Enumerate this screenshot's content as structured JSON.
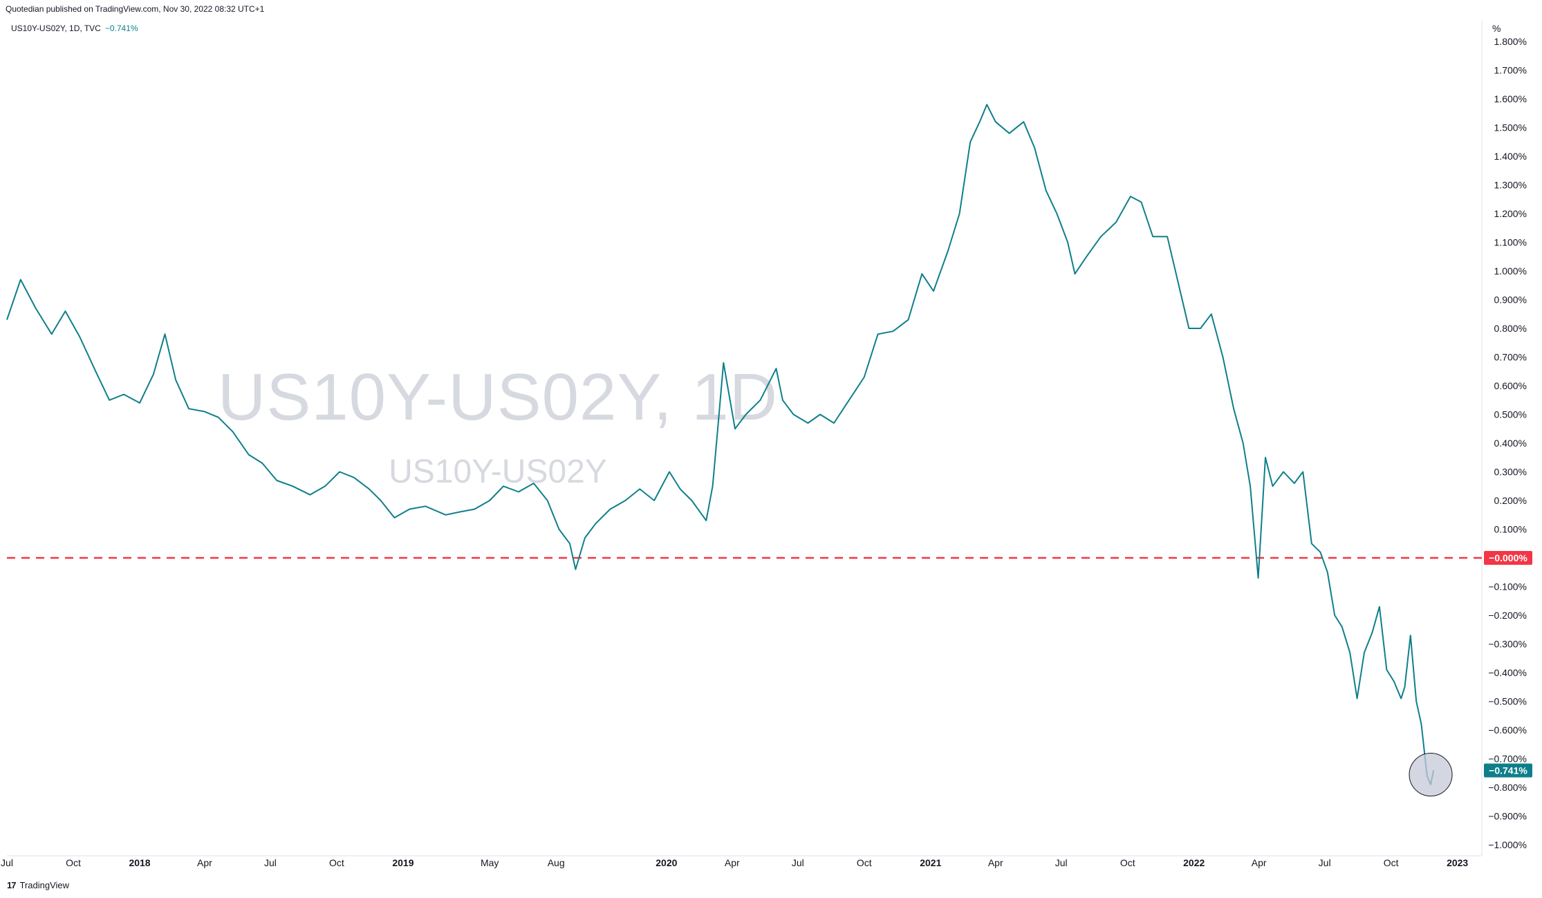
{
  "header": {
    "published": "Quotedian published on TradingView.com, Nov 30, 2022 08:32 UTC+1"
  },
  "legend": {
    "symbol": "US10Y-US02Y, 1D, TVC",
    "value": "−0.741%"
  },
  "watermark": {
    "big": "US10Y-US02Y, 1D",
    "small": "US10Y-US02Y"
  },
  "footer": {
    "brand": "TradingView"
  },
  "colors": {
    "line": "#0e7f8a",
    "zero_line": "#f23645",
    "last_label_bg": "#0e7f8a",
    "circle_fill": "#c5c8d8"
  },
  "chart_data": {
    "type": "line",
    "unit_label": "%",
    "ylim": [
      -1.0,
      1.8
    ],
    "y_ticks": [
      1.8,
      1.7,
      1.6,
      1.5,
      1.4,
      1.3,
      1.2,
      1.1,
      1.0,
      0.9,
      0.8,
      0.7,
      0.6,
      0.5,
      0.4,
      0.3,
      0.2,
      0.1,
      -0.1,
      -0.2,
      -0.3,
      -0.4,
      -0.5,
      -0.6,
      -0.7,
      -0.8,
      -0.9,
      -1.0
    ],
    "y_tick_labels": [
      "1.800%",
      "1.700%",
      "1.600%",
      "1.500%",
      "1.400%",
      "1.300%",
      "1.200%",
      "1.100%",
      "1.000%",
      "0.900%",
      "0.800%",
      "0.700%",
      "0.600%",
      "0.500%",
      "0.400%",
      "0.300%",
      "0.200%",
      "0.100%",
      "−0.100%",
      "−0.200%",
      "−0.300%",
      "−0.400%",
      "−0.500%",
      "−0.600%",
      "−0.700%",
      "−0.800%",
      "−0.900%",
      "−1.000%"
    ],
    "xlim": [
      "2017-07-01",
      "2023-02-01"
    ],
    "x_ticks": [
      {
        "date": "2017-07-01",
        "label": "Jul",
        "bold": false
      },
      {
        "date": "2017-10-01",
        "label": "Oct",
        "bold": false
      },
      {
        "date": "2018-01-01",
        "label": "2018",
        "bold": true
      },
      {
        "date": "2018-04-01",
        "label": "Apr",
        "bold": false
      },
      {
        "date": "2018-07-01",
        "label": "Jul",
        "bold": false
      },
      {
        "date": "2018-10-01",
        "label": "Oct",
        "bold": false
      },
      {
        "date": "2019-01-01",
        "label": "2019",
        "bold": true
      },
      {
        "date": "2019-05-01",
        "label": "May",
        "bold": false
      },
      {
        "date": "2019-08-01",
        "label": "Aug",
        "bold": false
      },
      {
        "date": "2020-01-01",
        "label": "2020",
        "bold": true
      },
      {
        "date": "2020-04-01",
        "label": "Apr",
        "bold": false
      },
      {
        "date": "2020-07-01",
        "label": "Jul",
        "bold": false
      },
      {
        "date": "2020-10-01",
        "label": "Oct",
        "bold": false
      },
      {
        "date": "2021-01-01",
        "label": "2021",
        "bold": true
      },
      {
        "date": "2021-04-01",
        "label": "Apr",
        "bold": false
      },
      {
        "date": "2021-07-01",
        "label": "Jul",
        "bold": false
      },
      {
        "date": "2021-10-01",
        "label": "Oct",
        "bold": false
      },
      {
        "date": "2022-01-01",
        "label": "2022",
        "bold": true
      },
      {
        "date": "2022-04-01",
        "label": "Apr",
        "bold": false
      },
      {
        "date": "2022-07-01",
        "label": "Jul",
        "bold": false
      },
      {
        "date": "2022-10-01",
        "label": "Oct",
        "bold": false
      },
      {
        "date": "2023-01-01",
        "label": "2023",
        "bold": true
      }
    ],
    "series": [
      {
        "x": [
          "2017-07-01",
          "2017-07-20",
          "2017-08-10",
          "2017-09-01",
          "2017-09-20",
          "2017-10-10",
          "2017-11-01",
          "2017-11-20",
          "2017-12-10",
          "2018-01-01",
          "2018-01-20",
          "2018-02-05",
          "2018-02-20",
          "2018-03-10",
          "2018-04-01",
          "2018-04-20",
          "2018-05-10",
          "2018-06-01",
          "2018-06-20",
          "2018-07-10",
          "2018-08-01",
          "2018-08-25",
          "2018-09-15",
          "2018-10-05",
          "2018-10-25",
          "2018-11-15",
          "2018-12-01",
          "2018-12-20",
          "2019-01-10",
          "2019-02-01",
          "2019-03-01",
          "2019-03-20",
          "2019-04-10",
          "2019-05-01",
          "2019-05-20",
          "2019-06-10",
          "2019-07-01",
          "2019-07-20",
          "2019-08-05",
          "2019-08-20",
          "2019-08-28",
          "2019-09-10",
          "2019-09-25",
          "2019-10-15",
          "2019-11-05",
          "2019-11-25",
          "2019-12-15",
          "2020-01-05",
          "2020-01-20",
          "2020-02-05",
          "2020-02-25",
          "2020-03-05",
          "2020-03-12",
          "2020-03-20",
          "2020-04-05",
          "2020-04-20",
          "2020-05-10",
          "2020-06-01",
          "2020-06-10",
          "2020-06-25",
          "2020-07-15",
          "2020-08-01",
          "2020-08-20",
          "2020-09-10",
          "2020-10-01",
          "2020-10-20",
          "2020-11-10",
          "2020-12-01",
          "2020-12-20",
          "2021-01-05",
          "2021-01-25",
          "2021-02-10",
          "2021-02-25",
          "2021-03-10",
          "2021-03-20",
          "2021-04-01",
          "2021-04-20",
          "2021-05-10",
          "2021-05-25",
          "2021-06-10",
          "2021-06-25",
          "2021-07-10",
          "2021-07-20",
          "2021-08-05",
          "2021-08-25",
          "2021-09-15",
          "2021-10-05",
          "2021-10-20",
          "2021-11-05",
          "2021-11-25",
          "2021-12-10",
          "2021-12-25",
          "2022-01-10",
          "2022-01-25",
          "2022-02-10",
          "2022-02-25",
          "2022-03-10",
          "2022-03-20",
          "2022-03-31",
          "2022-04-10",
          "2022-04-20",
          "2022-05-05",
          "2022-05-20",
          "2022-06-01",
          "2022-06-13",
          "2022-06-25",
          "2022-07-05",
          "2022-07-15",
          "2022-07-25",
          "2022-08-05",
          "2022-08-15",
          "2022-08-25",
          "2022-09-05",
          "2022-09-15",
          "2022-09-25",
          "2022-10-05",
          "2022-10-15",
          "2022-10-20",
          "2022-10-28",
          "2022-11-05",
          "2022-11-12",
          "2022-11-20",
          "2022-11-25",
          "2022-11-29"
        ],
        "values": [
          0.83,
          0.97,
          0.87,
          0.78,
          0.86,
          0.77,
          0.65,
          0.55,
          0.57,
          0.54,
          0.64,
          0.78,
          0.62,
          0.52,
          0.51,
          0.49,
          0.44,
          0.36,
          0.33,
          0.27,
          0.25,
          0.22,
          0.25,
          0.3,
          0.28,
          0.24,
          0.2,
          0.14,
          0.17,
          0.18,
          0.15,
          0.16,
          0.17,
          0.2,
          0.25,
          0.23,
          0.26,
          0.2,
          0.1,
          0.05,
          -0.04,
          0.07,
          0.12,
          0.17,
          0.2,
          0.24,
          0.2,
          0.3,
          0.24,
          0.2,
          0.13,
          0.25,
          0.45,
          0.68,
          0.45,
          0.5,
          0.55,
          0.66,
          0.55,
          0.5,
          0.47,
          0.5,
          0.47,
          0.55,
          0.63,
          0.78,
          0.79,
          0.83,
          0.99,
          0.93,
          1.07,
          1.2,
          1.45,
          1.52,
          1.58,
          1.52,
          1.48,
          1.52,
          1.43,
          1.28,
          1.2,
          1.1,
          0.99,
          1.05,
          1.12,
          1.17,
          1.26,
          1.24,
          1.12,
          1.12,
          0.96,
          0.8,
          0.8,
          0.85,
          0.7,
          0.52,
          0.4,
          0.25,
          -0.07,
          0.35,
          0.25,
          0.3,
          0.26,
          0.3,
          0.05,
          0.02,
          -0.05,
          -0.2,
          -0.24,
          -0.33,
          -0.49,
          -0.33,
          -0.26,
          -0.17,
          -0.39,
          -0.43,
          -0.49,
          -0.45,
          -0.27,
          -0.5,
          -0.58,
          -0.76,
          -0.79,
          -0.74
        ]
      }
    ],
    "reference_line": {
      "y": 0.0,
      "label": "−0.000%"
    },
    "last_value": {
      "y": -0.741,
      "label": "−0.741%"
    },
    "highlight_circle_date": "2022-11-25"
  }
}
